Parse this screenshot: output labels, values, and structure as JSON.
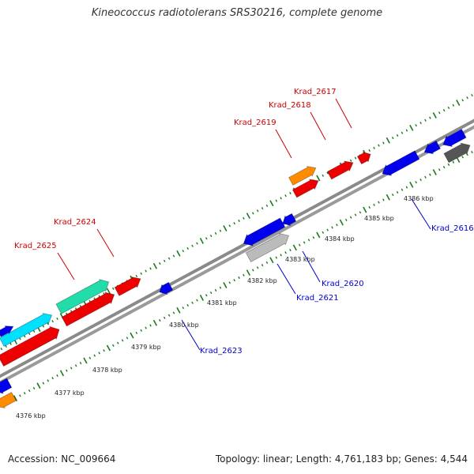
{
  "title": "Kineococcus radiotolerans SRS30216, complete genome",
  "accession_label": "Accession: NC_009664",
  "genome_info": "Topology: linear; Length: 4,761,183 bp; Genes: 4,544",
  "colors": {
    "backbone": "#999999",
    "forward_label": "#cc0000",
    "reverse_label": "#0000cc",
    "tick": "#1a7a1a",
    "gene_red": "#ee0000",
    "gene_blue": "#0000ee",
    "gene_orange": "#ff8c00",
    "gene_teal": "#22ddaa",
    "gene_cyan": "#00e0ff",
    "gene_gray": "#555555",
    "gene_lightgray": "#bbbbbb"
  },
  "scale_labels": [
    "4376 kbp",
    "4377 kbp",
    "4378 kbp",
    "4379 kbp",
    "4380 kbp",
    "4381 kbp",
    "4382 kbp",
    "4383 kbp",
    "4384 kbp",
    "4385 kbp",
    "4386 kbp"
  ],
  "forward_labels": [
    "Krad_2617",
    "Krad_2618",
    "Krad_2619",
    "Krad_2624",
    "Krad_2625"
  ],
  "reverse_labels": [
    "Krad_2616",
    "Krad_2620",
    "Krad_2621",
    "Krad_2623"
  ]
}
